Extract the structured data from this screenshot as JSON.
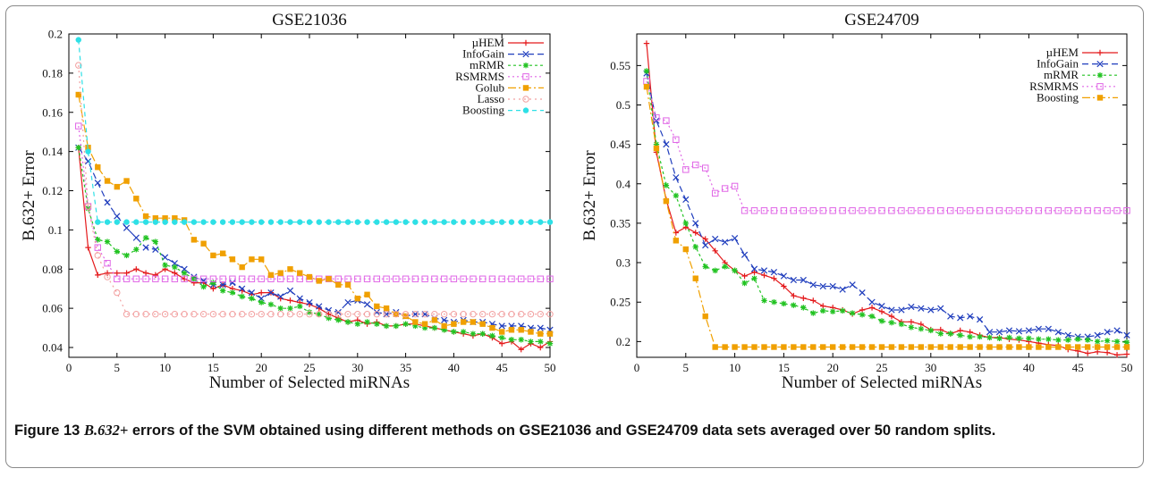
{
  "caption": {
    "label": "Figure 13",
    "symbol": "B.632+",
    "text": "errors of the SVM obtained using different methods on GSE21036 and GSE24709 data sets averaged over 50 random splits."
  },
  "chart_data": [
    {
      "type": "line",
      "title": "GSE21036",
      "xlabel": "Number of Selected miRNAs",
      "ylabel": "B.632+ Error",
      "xlim": [
        0,
        50
      ],
      "ylim": [
        0.035,
        0.2
      ],
      "xticks": [
        0,
        5,
        10,
        15,
        20,
        25,
        30,
        35,
        40,
        45,
        50
      ],
      "yticks": [
        0.04,
        0.06,
        0.08,
        0.1,
        0.12,
        0.14,
        0.16,
        0.18,
        0.2
      ],
      "ytick_labels": [
        "0.04",
        "0.06",
        "0.08",
        "0.1",
        "0.12",
        "0.14",
        "0.16",
        "0.18",
        "0.2"
      ],
      "legend": "top-right",
      "series": [
        {
          "name": "µHEM",
          "color": "#e41a1c",
          "dash": "",
          "marker": "plus",
          "values": [
            0.142,
            0.091,
            0.077,
            0.078,
            0.078,
            0.078,
            0.08,
            0.078,
            0.077,
            0.08,
            0.078,
            0.075,
            0.073,
            0.073,
            0.07,
            0.072,
            0.07,
            0.069,
            0.067,
            0.068,
            0.068,
            0.065,
            0.064,
            0.063,
            0.062,
            0.06,
            0.057,
            0.055,
            0.053,
            0.054,
            0.052,
            0.053,
            0.051,
            0.051,
            0.052,
            0.052,
            0.051,
            0.05,
            0.049,
            0.048,
            0.047,
            0.046,
            0.047,
            0.045,
            0.042,
            0.043,
            0.039,
            0.042,
            0.04,
            0.043
          ]
        },
        {
          "name": "InfoGain",
          "color": "#1f3dbd",
          "dash": "7,4",
          "marker": "x",
          "values": [
            0.142,
            0.135,
            0.124,
            0.114,
            0.107,
            0.101,
            0.096,
            0.091,
            0.09,
            0.086,
            0.083,
            0.08,
            0.076,
            0.074,
            0.072,
            0.072,
            0.073,
            0.07,
            0.068,
            0.065,
            0.068,
            0.066,
            0.069,
            0.065,
            0.063,
            0.061,
            0.059,
            0.058,
            0.063,
            0.064,
            0.062,
            0.058,
            0.057,
            0.058,
            0.056,
            0.057,
            0.057,
            0.055,
            0.054,
            0.053,
            0.054,
            0.053,
            0.053,
            0.052,
            0.051,
            0.051,
            0.051,
            0.05,
            0.05,
            0.049
          ]
        },
        {
          "name": "mRMR",
          "color": "#22c322",
          "dash": "3,3",
          "marker": "star",
          "values": [
            0.142,
            0.111,
            0.095,
            0.094,
            0.089,
            0.087,
            0.09,
            0.096,
            0.094,
            0.082,
            0.081,
            0.078,
            0.075,
            0.071,
            0.073,
            0.069,
            0.068,
            0.066,
            0.065,
            0.063,
            0.062,
            0.06,
            0.06,
            0.061,
            0.058,
            0.057,
            0.055,
            0.054,
            0.053,
            0.052,
            0.053,
            0.052,
            0.051,
            0.051,
            0.052,
            0.051,
            0.05,
            0.05,
            0.049,
            0.048,
            0.048,
            0.047,
            0.047,
            0.046,
            0.045,
            0.044,
            0.044,
            0.043,
            0.043,
            0.042
          ]
        },
        {
          "name": "RSMRMS",
          "color": "#e066e6",
          "dash": "2,3",
          "marker": "square",
          "values": [
            0.153,
            0.112,
            0.091,
            0.083,
            0.075,
            0.075,
            0.075,
            0.075,
            0.075,
            0.075,
            0.075,
            0.075,
            0.075,
            0.075,
            0.075,
            0.075,
            0.075,
            0.075,
            0.075,
            0.075,
            0.075,
            0.075,
            0.075,
            0.075,
            0.075,
            0.075,
            0.075,
            0.075,
            0.075,
            0.075,
            0.075,
            0.075,
            0.075,
            0.075,
            0.075,
            0.075,
            0.075,
            0.075,
            0.075,
            0.075,
            0.075,
            0.075,
            0.075,
            0.075,
            0.075,
            0.075,
            0.075,
            0.075,
            0.075,
            0.075
          ]
        },
        {
          "name": "Golub",
          "color": "#f0a000",
          "dash": "9,3,2,3",
          "marker": "fsquare",
          "values": [
            0.169,
            0.142,
            0.132,
            0.125,
            0.122,
            0.125,
            0.116,
            0.107,
            0.106,
            0.106,
            0.106,
            0.105,
            0.095,
            0.093,
            0.087,
            0.088,
            0.085,
            0.081,
            0.085,
            0.085,
            0.077,
            0.078,
            0.08,
            0.078,
            0.076,
            0.074,
            0.075,
            0.072,
            0.072,
            0.065,
            0.067,
            0.061,
            0.06,
            0.057,
            0.056,
            0.053,
            0.052,
            0.054,
            0.051,
            0.052,
            0.053,
            0.053,
            0.052,
            0.05,
            0.048,
            0.049,
            0.049,
            0.048,
            0.047,
            0.047
          ]
        },
        {
          "name": "Lasso",
          "color": "#f2a0a0",
          "dash": "2,4",
          "marker": "circle",
          "values": [
            0.184,
            0.112,
            0.087,
            0.076,
            0.068,
            0.057,
            0.057,
            0.057,
            0.057,
            0.057,
            0.057,
            0.057,
            0.057,
            0.057,
            0.057,
            0.057,
            0.057,
            0.057,
            0.057,
            0.057,
            0.057,
            0.057,
            0.057,
            0.057,
            0.057,
            0.057,
            0.057,
            0.057,
            0.057,
            0.057,
            0.057,
            0.057,
            0.057,
            0.057,
            0.057,
            0.057,
            0.057,
            0.057,
            0.057,
            0.057,
            0.057,
            0.057,
            0.057,
            0.057,
            0.057,
            0.057,
            0.057,
            0.057,
            0.057,
            0.057
          ]
        },
        {
          "name": "Boosting",
          "color": "#2ee0e6",
          "dash": "5,4",
          "marker": "fcircle",
          "values": [
            0.197,
            0.14,
            0.104,
            0.104,
            0.104,
            0.104,
            0.104,
            0.104,
            0.104,
            0.104,
            0.104,
            0.104,
            0.104,
            0.104,
            0.104,
            0.104,
            0.104,
            0.104,
            0.104,
            0.104,
            0.104,
            0.104,
            0.104,
            0.104,
            0.104,
            0.104,
            0.104,
            0.104,
            0.104,
            0.104,
            0.104,
            0.104,
            0.104,
            0.104,
            0.104,
            0.104,
            0.104,
            0.104,
            0.104,
            0.104,
            0.104,
            0.104,
            0.104,
            0.104,
            0.104,
            0.104,
            0.104,
            0.104,
            0.104,
            0.104
          ]
        }
      ]
    },
    {
      "type": "line",
      "title": "GSE24709",
      "xlabel": "Number of Selected miRNAs",
      "ylabel": "B.632+ Error",
      "xlim": [
        0,
        50
      ],
      "ylim": [
        0.18,
        0.59
      ],
      "xticks": [
        0,
        5,
        10,
        15,
        20,
        25,
        30,
        35,
        40,
        45,
        50
      ],
      "yticks": [
        0.2,
        0.25,
        0.3,
        0.35,
        0.4,
        0.45,
        0.5,
        0.55
      ],
      "ytick_labels": [
        "0.2",
        "0.25",
        "0.3",
        "0.35",
        "0.4",
        "0.45",
        "0.5",
        "0.55"
      ],
      "legend": "top-right",
      "series": [
        {
          "name": "µHEM",
          "color": "#e41a1c",
          "dash": "",
          "marker": "plus",
          "values": [
            0.578,
            0.44,
            0.38,
            0.338,
            0.345,
            0.338,
            0.33,
            0.315,
            0.3,
            0.29,
            0.283,
            0.288,
            0.284,
            0.28,
            0.27,
            0.258,
            0.255,
            0.252,
            0.245,
            0.243,
            0.24,
            0.235,
            0.24,
            0.243,
            0.238,
            0.232,
            0.225,
            0.225,
            0.222,
            0.215,
            0.215,
            0.21,
            0.214,
            0.212,
            0.208,
            0.205,
            0.205,
            0.203,
            0.202,
            0.2,
            0.198,
            0.196,
            0.195,
            0.19,
            0.188,
            0.185,
            0.187,
            0.186,
            0.183,
            0.184
          ]
        },
        {
          "name": "InfoGain",
          "color": "#1f3dbd",
          "dash": "7,4",
          "marker": "x",
          "values": [
            0.54,
            0.48,
            0.45,
            0.408,
            0.38,
            0.35,
            0.322,
            0.33,
            0.326,
            0.331,
            0.31,
            0.292,
            0.29,
            0.288,
            0.283,
            0.278,
            0.278,
            0.272,
            0.27,
            0.27,
            0.266,
            0.272,
            0.262,
            0.25,
            0.245,
            0.24,
            0.24,
            0.244,
            0.242,
            0.24,
            0.242,
            0.232,
            0.23,
            0.232,
            0.228,
            0.212,
            0.212,
            0.214,
            0.213,
            0.214,
            0.216,
            0.216,
            0.212,
            0.208,
            0.206,
            0.206,
            0.208,
            0.212,
            0.214,
            0.208
          ]
        },
        {
          "name": "mRMR",
          "color": "#22c322",
          "dash": "3,3",
          "marker": "star",
          "values": [
            0.543,
            0.45,
            0.398,
            0.385,
            0.35,
            0.32,
            0.295,
            0.29,
            0.295,
            0.29,
            0.274,
            0.28,
            0.252,
            0.25,
            0.248,
            0.246,
            0.243,
            0.236,
            0.239,
            0.238,
            0.239,
            0.236,
            0.234,
            0.232,
            0.226,
            0.224,
            0.222,
            0.218,
            0.216,
            0.214,
            0.21,
            0.21,
            0.208,
            0.206,
            0.206,
            0.205,
            0.204,
            0.205,
            0.204,
            0.204,
            0.203,
            0.203,
            0.202,
            0.202,
            0.203,
            0.202,
            0.2,
            0.201,
            0.2,
            0.199
          ]
        },
        {
          "name": "RSMRMS",
          "color": "#e066e6",
          "dash": "2,3",
          "marker": "square",
          "values": [
            0.53,
            0.484,
            0.48,
            0.456,
            0.418,
            0.424,
            0.42,
            0.388,
            0.394,
            0.397,
            0.366,
            0.366,
            0.366,
            0.366,
            0.366,
            0.366,
            0.366,
            0.366,
            0.366,
            0.366,
            0.366,
            0.366,
            0.366,
            0.366,
            0.366,
            0.366,
            0.366,
            0.366,
            0.366,
            0.366,
            0.366,
            0.366,
            0.366,
            0.366,
            0.366,
            0.366,
            0.366,
            0.366,
            0.366,
            0.366,
            0.366,
            0.366,
            0.366,
            0.366,
            0.366,
            0.366,
            0.366,
            0.366,
            0.366,
            0.366
          ]
        },
        {
          "name": "Boosting",
          "color": "#f0a000",
          "dash": "9,3,2,3",
          "marker": "fsquare",
          "values": [
            0.523,
            0.445,
            0.378,
            0.328,
            0.317,
            0.28,
            0.232,
            0.193,
            0.193,
            0.193,
            0.193,
            0.193,
            0.193,
            0.193,
            0.193,
            0.193,
            0.193,
            0.193,
            0.193,
            0.193,
            0.193,
            0.193,
            0.193,
            0.193,
            0.193,
            0.193,
            0.193,
            0.193,
            0.193,
            0.193,
            0.193,
            0.193,
            0.193,
            0.193,
            0.193,
            0.193,
            0.193,
            0.193,
            0.193,
            0.193,
            0.193,
            0.193,
            0.193,
            0.193,
            0.193,
            0.193,
            0.193,
            0.193,
            0.193,
            0.193
          ]
        }
      ]
    }
  ]
}
